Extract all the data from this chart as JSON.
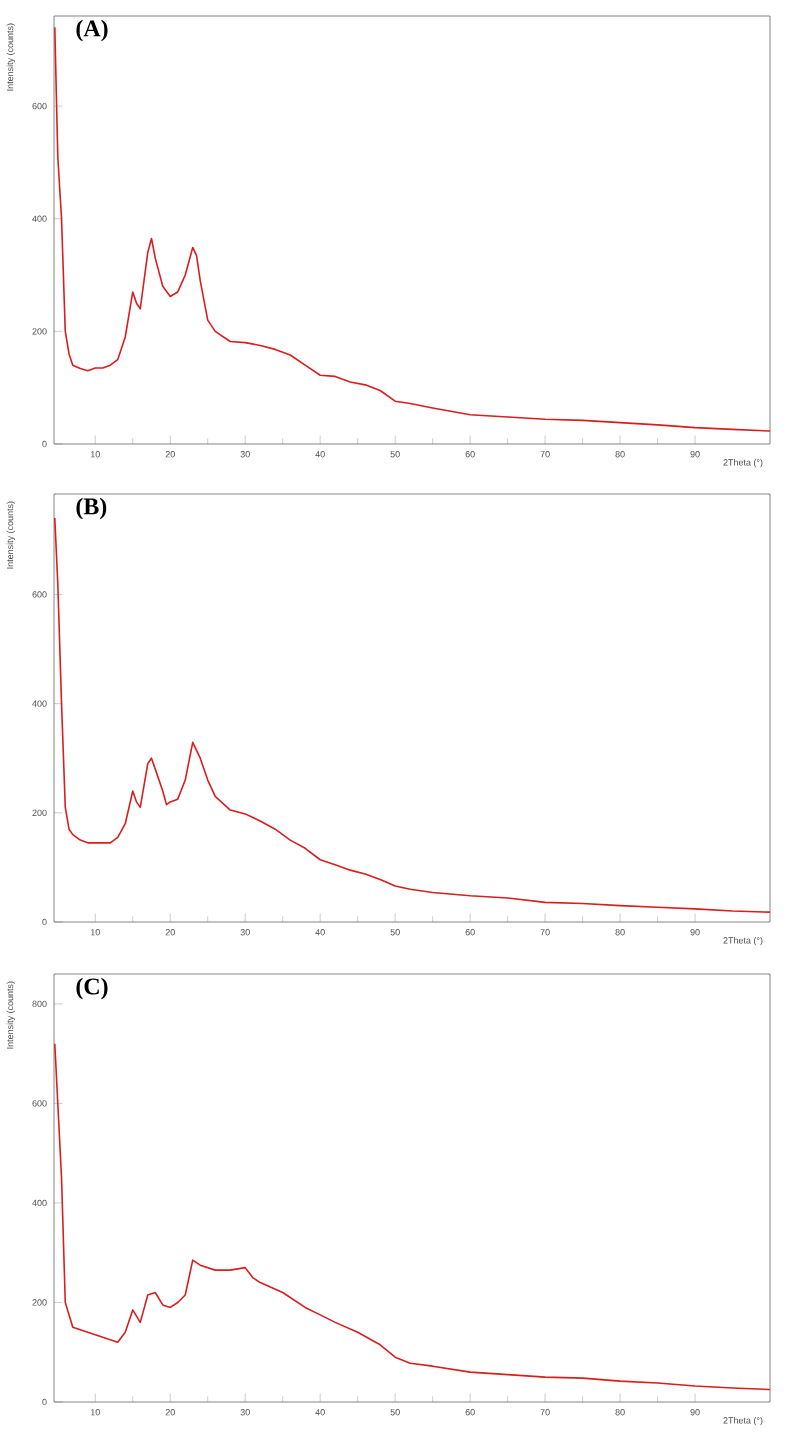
{
  "chart_data": [
    {
      "type": "line",
      "title": "(A)",
      "xlabel": "2Theta (°)",
      "ylabel": "Intensity (counts)",
      "xlim": [
        4.5,
        100
      ],
      "ylim": [
        0,
        760
      ],
      "xticks": [
        10,
        20,
        30,
        40,
        50,
        60,
        70,
        80,
        90
      ],
      "yticks": [
        0,
        200,
        400,
        600
      ],
      "grid": false,
      "marker": "none",
      "line_style": "solid",
      "x": [
        4.6,
        5.0,
        5.5,
        6.0,
        6.5,
        7,
        8,
        9,
        10,
        11,
        12,
        13,
        14,
        15,
        15.5,
        16,
        17,
        17.5,
        18,
        19,
        20,
        21,
        22,
        23,
        23.5,
        24,
        25,
        26,
        28,
        30,
        32,
        34,
        36,
        38,
        40,
        42,
        44,
        46,
        48,
        50,
        52,
        55,
        60,
        65,
        70,
        75,
        80,
        85,
        90,
        95,
        100
      ],
      "series": [
        {
          "color": "#d81e1e",
          "values": [
            740,
            510,
            400,
            200,
            160,
            140,
            134,
            130,
            135,
            135,
            140,
            150,
            190,
            270,
            250,
            240,
            340,
            365,
            330,
            280,
            262,
            270,
            300,
            349,
            335,
            290,
            220,
            200,
            182,
            180,
            175,
            168,
            158,
            140,
            122,
            120,
            110,
            105,
            95,
            76,
            72,
            64,
            52,
            48,
            44,
            42,
            38,
            34,
            29,
            26,
            23
          ]
        }
      ]
    },
    {
      "type": "line",
      "title": "(B)",
      "xlabel": "2Theta (°)",
      "ylabel": "Intensity (counts)",
      "xlim": [
        4.5,
        100
      ],
      "ylim": [
        0,
        784
      ],
      "xticks": [
        10,
        20,
        30,
        40,
        50,
        60,
        70,
        80,
        90
      ],
      "yticks": [
        0,
        200,
        400,
        600
      ],
      "grid": false,
      "marker": "none",
      "line_style": "solid",
      "x": [
        4.6,
        5.0,
        5.5,
        6.0,
        6.5,
        7,
        8,
        9,
        10,
        11,
        12,
        13,
        14,
        15,
        15.5,
        16,
        17,
        17.5,
        18,
        19,
        19.5,
        20,
        21,
        22,
        23,
        24,
        25,
        26,
        28,
        30,
        32,
        34,
        36,
        38,
        40,
        42,
        44,
        46,
        48,
        50,
        52,
        55,
        60,
        65,
        70,
        75,
        80,
        85,
        90,
        95,
        100
      ],
      "series": [
        {
          "color": "#d81e1e",
          "values": [
            740,
            620,
            400,
            210,
            170,
            160,
            150,
            145,
            145,
            145,
            145,
            155,
            180,
            240,
            220,
            210,
            290,
            300,
            280,
            240,
            215,
            220,
            225,
            260,
            329,
            300,
            260,
            230,
            205,
            198,
            185,
            170,
            150,
            135,
            114,
            105,
            95,
            88,
            78,
            66,
            60,
            54,
            48,
            44,
            36,
            34,
            30,
            27,
            24,
            20,
            18
          ]
        }
      ]
    },
    {
      "type": "line",
      "title": "(C)",
      "xlabel": "2Theta (°)",
      "ylabel": "Intensity (counts)",
      "xlim": [
        4.5,
        100
      ],
      "ylim": [
        0,
        860
      ],
      "xticks": [
        10,
        20,
        30,
        40,
        50,
        60,
        70,
        80,
        90
      ],
      "yticks": [
        0,
        200,
        400,
        600,
        800
      ],
      "grid": false,
      "marker": "none",
      "line_style": "solid",
      "x": [
        4.6,
        5.0,
        5.5,
        6.0,
        7,
        10,
        12,
        13,
        14,
        15,
        16,
        17,
        18,
        19,
        20,
        21,
        22,
        23,
        24,
        26,
        28,
        30,
        31,
        32,
        35,
        38,
        40,
        42,
        45,
        48,
        50,
        52,
        55,
        60,
        65,
        70,
        75,
        80,
        85,
        90,
        95,
        100
      ],
      "series": [
        {
          "color": "#d81e1e",
          "values": [
            720,
            600,
            450,
            200,
            150,
            135,
            125,
            120,
            140,
            185,
            160,
            215,
            220,
            195,
            190,
            200,
            215,
            285,
            275,
            265,
            265,
            270,
            250,
            240,
            220,
            190,
            175,
            160,
            140,
            115,
            90,
            78,
            72,
            60,
            55,
            50,
            48,
            42,
            38,
            32,
            28,
            25
          ]
        }
      ]
    }
  ]
}
